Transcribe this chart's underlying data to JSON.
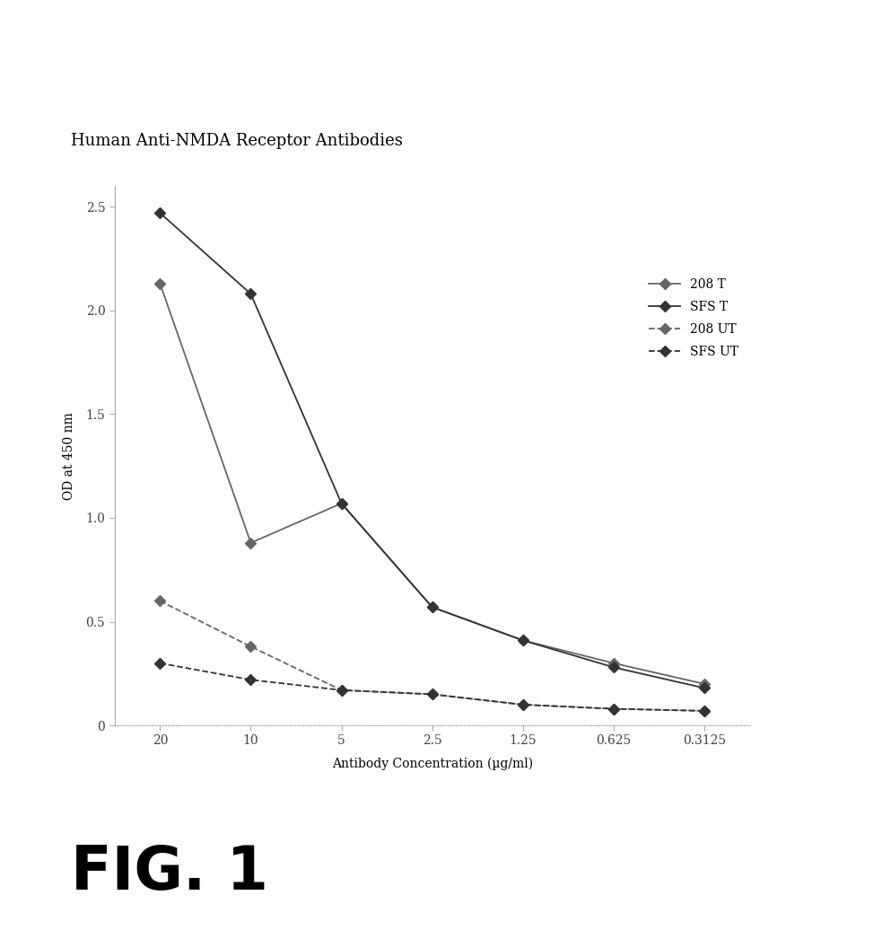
{
  "title": "Human Anti-NMDA Receptor Antibodies",
  "xlabel": "Antibody Concentration (µg/ml)",
  "ylabel": "OD at 450 nm",
  "fig_label": "FIG. 1",
  "x_labels": [
    "20",
    "10",
    "5",
    "2.5",
    "1.25",
    "0.625",
    "0.3125"
  ],
  "x_values": [
    1,
    2,
    3,
    4,
    5,
    6,
    7
  ],
  "series": [
    {
      "label": "208 T",
      "y": [
        2.13,
        0.88,
        1.07,
        0.57,
        0.41,
        0.3,
        0.2
      ],
      "linestyle": "-",
      "color": "#666666",
      "marker": "D",
      "markersize": 6,
      "linewidth": 1.3,
      "dashed": false
    },
    {
      "label": "SFS T",
      "y": [
        2.47,
        2.08,
        1.07,
        0.57,
        0.41,
        0.28,
        0.18
      ],
      "linestyle": "-",
      "color": "#333333",
      "marker": "D",
      "markersize": 6,
      "linewidth": 1.3,
      "dashed": false
    },
    {
      "label": "208 UT",
      "y": [
        0.6,
        0.38,
        0.17,
        0.15,
        0.1,
        0.08,
        0.07
      ],
      "linestyle": "--",
      "color": "#666666",
      "marker": "D",
      "markersize": 6,
      "linewidth": 1.3,
      "dashed": true
    },
    {
      "label": "SFS UT",
      "y": [
        0.3,
        0.22,
        0.17,
        0.15,
        0.1,
        0.08,
        0.07
      ],
      "linestyle": "--",
      "color": "#333333",
      "marker": "D",
      "markersize": 6,
      "linewidth": 1.3,
      "dashed": true
    }
  ],
  "ylim": [
    0,
    2.6
  ],
  "yticks": [
    0,
    0.5,
    1.0,
    1.5,
    2.0,
    2.5
  ],
  "ytick_labels": [
    "0",
    "0.5",
    "1.0",
    "1.5",
    "2.0",
    "2.5"
  ],
  "background_color": "#ffffff",
  "title_fontsize": 13,
  "label_fontsize": 10,
  "tick_fontsize": 10,
  "legend_fontsize": 10,
  "fig_label_fontsize": 48
}
